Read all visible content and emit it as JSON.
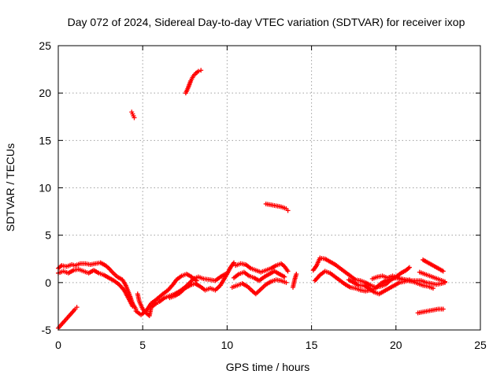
{
  "chart_data": {
    "type": "scatter",
    "title": "Day 072 of 2024, Sidereal Day-to-day VTEC variation (SDTVAR) for receiver ixop",
    "xlabel": "GPS time / hours",
    "ylabel": "SDTVAR / TECUs",
    "xlim": [
      0,
      25
    ],
    "ylim": [
      -5,
      25
    ],
    "grid": true,
    "marker": "+",
    "xticks": [
      0,
      5,
      10,
      15,
      20,
      25
    ],
    "yticks": [
      -5,
      0,
      5,
      10,
      15,
      20,
      25
    ],
    "series": [
      {
        "name": "SDTVAR",
        "color": "#ff0000",
        "segments": [
          {
            "points": [
              [
                0.0,
                1.5
              ],
              [
                0.2,
                1.8
              ],
              [
                0.5,
                1.7
              ],
              [
                0.8,
                1.9
              ],
              [
                1.0,
                1.8
              ],
              [
                1.3,
                2.0
              ],
              [
                1.6,
                2.0
              ],
              [
                1.9,
                1.9
              ],
              [
                2.2,
                2.0
              ],
              [
                2.5,
                2.1
              ],
              [
                2.8,
                1.8
              ],
              [
                3.0,
                1.5
              ],
              [
                3.2,
                1.1
              ],
              [
                3.5,
                0.6
              ],
              [
                3.8,
                0.3
              ],
              [
                4.0,
                -0.3
              ],
              [
                4.2,
                -1.2
              ],
              [
                4.4,
                -2.2
              ],
              [
                4.6,
                -2.8
              ]
            ]
          },
          {
            "points": [
              [
                0.0,
                1.0
              ],
              [
                0.3,
                1.2
              ],
              [
                0.6,
                1.0
              ],
              [
                0.9,
                1.3
              ],
              [
                1.2,
                1.4
              ],
              [
                1.5,
                1.2
              ],
              [
                1.8,
                1.0
              ],
              [
                2.1,
                1.3
              ],
              [
                2.4,
                1.0
              ],
              [
                2.7,
                0.8
              ],
              [
                3.0,
                0.5
              ],
              [
                3.3,
                0.2
              ],
              [
                3.6,
                -0.2
              ],
              [
                3.9,
                -0.8
              ],
              [
                4.2,
                -1.8
              ],
              [
                4.4,
                -2.5
              ]
            ]
          },
          {
            "points": [
              [
                0.0,
                -4.8
              ],
              [
                0.2,
                -4.4
              ],
              [
                0.4,
                -4.0
              ],
              [
                0.6,
                -3.6
              ],
              [
                0.8,
                -3.2
              ],
              [
                1.0,
                -2.8
              ],
              [
                1.1,
                -2.6
              ]
            ]
          },
          {
            "points": [
              [
                4.35,
                18.0
              ],
              [
                4.45,
                17.6
              ],
              [
                4.5,
                17.4
              ]
            ]
          },
          {
            "points": [
              [
                4.7,
                -1.2
              ],
              [
                4.8,
                -2.0
              ],
              [
                5.0,
                -2.8
              ],
              [
                5.2,
                -3.2
              ],
              [
                5.4,
                -3.5
              ],
              [
                5.5,
                -2.6
              ],
              [
                5.8,
                -2.2
              ],
              [
                6.0,
                -2.0
              ],
              [
                6.3,
                -1.6
              ],
              [
                6.6,
                -1.4
              ],
              [
                6.9,
                -1.2
              ],
              [
                7.2,
                -0.9
              ],
              [
                7.5,
                -0.5
              ],
              [
                7.8,
                0.0
              ],
              [
                8.0,
                0.4
              ],
              [
                8.3,
                0.6
              ],
              [
                8.6,
                0.4
              ],
              [
                9.0,
                0.3
              ],
              [
                9.3,
                0.2
              ],
              [
                9.6,
                0.6
              ],
              [
                9.9,
                0.9
              ]
            ]
          },
          {
            "points": [
              [
                4.6,
                -3.0
              ],
              [
                4.9,
                -3.4
              ],
              [
                5.2,
                -3.0
              ],
              [
                5.5,
                -2.2
              ],
              [
                5.8,
                -1.8
              ],
              [
                6.2,
                -1.2
              ],
              [
                6.5,
                -0.8
              ],
              [
                6.8,
                -0.2
              ],
              [
                7.0,
                0.3
              ],
              [
                7.3,
                0.7
              ],
              [
                7.6,
                0.9
              ],
              [
                7.9,
                0.6
              ],
              [
                8.2,
                0.2
              ]
            ]
          },
          {
            "points": [
              [
                6.6,
                -1.6
              ],
              [
                6.9,
                -1.4
              ],
              [
                7.2,
                -1.1
              ],
              [
                7.5,
                -0.6
              ],
              [
                7.8,
                -0.3
              ],
              [
                8.1,
                -0.1
              ],
              [
                8.4,
                -0.4
              ],
              [
                8.7,
                -0.8
              ],
              [
                9.0,
                -0.6
              ],
              [
                9.3,
                -0.8
              ],
              [
                9.6,
                -0.3
              ],
              [
                9.9,
                0.6
              ],
              [
                10.2,
                1.6
              ],
              [
                10.4,
                2.1
              ]
            ]
          },
          {
            "points": [
              [
                7.55,
                20.0
              ],
              [
                7.7,
                20.6
              ],
              [
                7.85,
                21.3
              ],
              [
                8.0,
                21.8
              ],
              [
                8.15,
                22.1
              ],
              [
                8.3,
                22.3
              ],
              [
                8.45,
                22.4
              ]
            ]
          },
          {
            "points": [
              [
                10.5,
                1.8
              ],
              [
                10.8,
                2.0
              ],
              [
                11.1,
                1.9
              ],
              [
                11.4,
                1.5
              ],
              [
                11.7,
                1.3
              ],
              [
                12.0,
                1.1
              ],
              [
                12.3,
                1.3
              ],
              [
                12.6,
                1.5
              ],
              [
                12.9,
                1.8
              ],
              [
                13.2,
                2.0
              ],
              [
                13.4,
                1.7
              ],
              [
                13.6,
                1.2
              ]
            ]
          },
          {
            "points": [
              [
                10.4,
                0.5
              ],
              [
                10.7,
                0.9
              ],
              [
                11.0,
                1.1
              ],
              [
                11.3,
                0.7
              ],
              [
                11.6,
                0.5
              ],
              [
                11.9,
                0.2
              ],
              [
                12.2,
                0.6
              ],
              [
                12.5,
                0.9
              ],
              [
                12.8,
                1.2
              ],
              [
                13.1,
                0.9
              ],
              [
                13.4,
                0.6
              ]
            ]
          },
          {
            "points": [
              [
                10.3,
                -0.5
              ],
              [
                10.6,
                -0.3
              ],
              [
                10.9,
                -0.1
              ],
              [
                11.2,
                -0.4
              ],
              [
                11.5,
                -0.9
              ],
              [
                11.7,
                -1.2
              ],
              [
                12.0,
                -0.7
              ],
              [
                12.3,
                -0.2
              ],
              [
                12.6,
                0.1
              ],
              [
                12.9,
                0.3
              ],
              [
                13.2,
                0.2
              ],
              [
                13.5,
                0.0
              ]
            ]
          },
          {
            "points": [
              [
                12.3,
                8.3
              ],
              [
                12.6,
                8.2
              ],
              [
                12.9,
                8.1
              ],
              [
                13.2,
                8.0
              ],
              [
                13.5,
                7.8
              ],
              [
                13.6,
                7.6
              ]
            ]
          },
          {
            "points": [
              [
                13.9,
                -0.5
              ],
              [
                14.0,
                0.3
              ],
              [
                14.1,
                0.9
              ]
            ]
          },
          {
            "points": [
              [
                15.1,
                1.3
              ],
              [
                15.3,
                1.8
              ],
              [
                15.5,
                2.6
              ],
              [
                15.8,
                2.5
              ],
              [
                16.1,
                2.2
              ],
              [
                16.4,
                1.9
              ],
              [
                16.7,
                1.5
              ],
              [
                17.0,
                1.1
              ],
              [
                17.3,
                0.7
              ],
              [
                17.6,
                0.3
              ],
              [
                17.9,
                0.2
              ],
              [
                18.2,
                0.0
              ],
              [
                18.5,
                -0.3
              ],
              [
                18.8,
                -0.5
              ],
              [
                19.1,
                -0.4
              ],
              [
                19.4,
                -0.2
              ],
              [
                19.7,
                0.3
              ],
              [
                20.0,
                0.6
              ],
              [
                20.3,
                1.0
              ],
              [
                20.6,
                1.3
              ],
              [
                20.8,
                1.6
              ]
            ]
          },
          {
            "points": [
              [
                15.2,
                0.2
              ],
              [
                15.5,
                0.8
              ],
              [
                15.8,
                1.2
              ],
              [
                16.1,
                1.0
              ],
              [
                16.4,
                0.6
              ],
              [
                16.7,
                0.2
              ],
              [
                17.0,
                -0.2
              ],
              [
                17.3,
                -0.5
              ],
              [
                17.6,
                -0.6
              ],
              [
                17.9,
                -0.8
              ],
              [
                18.2,
                -0.9
              ],
              [
                18.5,
                -0.8
              ],
              [
                18.8,
                -0.6
              ],
              [
                19.1,
                -0.1
              ],
              [
                19.4,
                0.2
              ],
              [
                19.7,
                0.4
              ],
              [
                20.0,
                0.5
              ],
              [
                20.3,
                0.4
              ],
              [
                20.6,
                0.3
              ],
              [
                20.9,
                0.2
              ],
              [
                21.2,
                0.2
              ],
              [
                21.5,
                0.2
              ],
              [
                21.8,
                0.0
              ],
              [
                22.1,
                -0.1
              ],
              [
                22.4,
                -0.2
              ],
              [
                22.7,
                -0.1
              ],
              [
                22.9,
                0.0
              ]
            ]
          },
          {
            "points": [
              [
                17.2,
                0.3
              ],
              [
                17.5,
                0.0
              ],
              [
                17.8,
                -0.3
              ],
              [
                18.1,
                -0.3
              ],
              [
                18.4,
                -0.6
              ],
              [
                18.7,
                -1.0
              ],
              [
                19.0,
                -1.2
              ],
              [
                19.3,
                -0.9
              ],
              [
                19.6,
                -0.6
              ],
              [
                19.9,
                -0.3
              ],
              [
                20.2,
                0.0
              ],
              [
                20.5,
                0.1
              ],
              [
                20.8,
                0.3
              ]
            ]
          },
          {
            "points": [
              [
                18.6,
                0.4
              ],
              [
                18.9,
                0.6
              ],
              [
                19.2,
                0.7
              ],
              [
                19.5,
                0.5
              ],
              [
                19.8,
                0.7
              ],
              [
                20.1,
                0.5
              ],
              [
                20.4,
                0.3
              ],
              [
                20.7,
                0.2
              ],
              [
                21.0,
                0.1
              ],
              [
                21.3,
                -0.1
              ],
              [
                21.6,
                -0.3
              ],
              [
                21.9,
                -0.4
              ],
              [
                22.2,
                -0.6
              ]
            ]
          },
          {
            "points": [
              [
                21.3,
                -3.2
              ],
              [
                21.6,
                -3.1
              ],
              [
                21.9,
                -3.0
              ],
              [
                22.2,
                -2.9
              ],
              [
                22.5,
                -2.8
              ],
              [
                22.8,
                -2.8
              ]
            ]
          },
          {
            "points": [
              [
                21.6,
                2.4
              ],
              [
                21.9,
                2.1
              ],
              [
                22.2,
                1.8
              ],
              [
                22.5,
                1.5
              ],
              [
                22.8,
                1.2
              ]
            ]
          },
          {
            "points": [
              [
                21.4,
                1.1
              ],
              [
                21.7,
                0.9
              ],
              [
                22.0,
                0.7
              ],
              [
                22.3,
                0.5
              ],
              [
                22.6,
                0.3
              ],
              [
                22.9,
                0.1
              ]
            ]
          }
        ]
      }
    ]
  }
}
